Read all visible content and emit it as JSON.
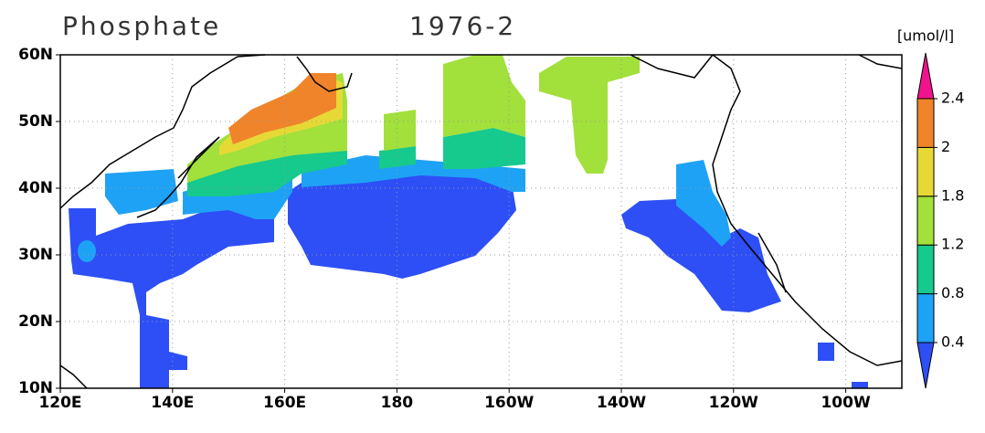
{
  "title": "Phosphate",
  "period": "1976-2",
  "lon_ticks": [
    {
      "value": 120,
      "label": "120E"
    },
    {
      "value": 140,
      "label": "140E"
    },
    {
      "value": 160,
      "label": "160E"
    },
    {
      "value": 180,
      "label": "180"
    },
    {
      "value": 200,
      "label": "160W"
    },
    {
      "value": 220,
      "label": "140W"
    },
    {
      "value": 240,
      "label": "120W"
    },
    {
      "value": 260,
      "label": "100W"
    }
  ],
  "lat_ticks": [
    {
      "value": 10,
      "label": "10N"
    },
    {
      "value": 20,
      "label": "20N"
    },
    {
      "value": 30,
      "label": "30N"
    },
    {
      "value": 40,
      "label": "40N"
    },
    {
      "value": 50,
      "label": "50N"
    },
    {
      "value": 60,
      "label": "60N"
    }
  ],
  "colorbar": {
    "unit": "[umol/l]",
    "levels": [
      0.4,
      0.8,
      1.2,
      1.8,
      2,
      2.4
    ],
    "colors": [
      "#2d4ff5",
      "#1ea2f6",
      "#16c98c",
      "#a2e03c",
      "#e6d936",
      "#f0842a",
      "#f0148c"
    ]
  }
}
